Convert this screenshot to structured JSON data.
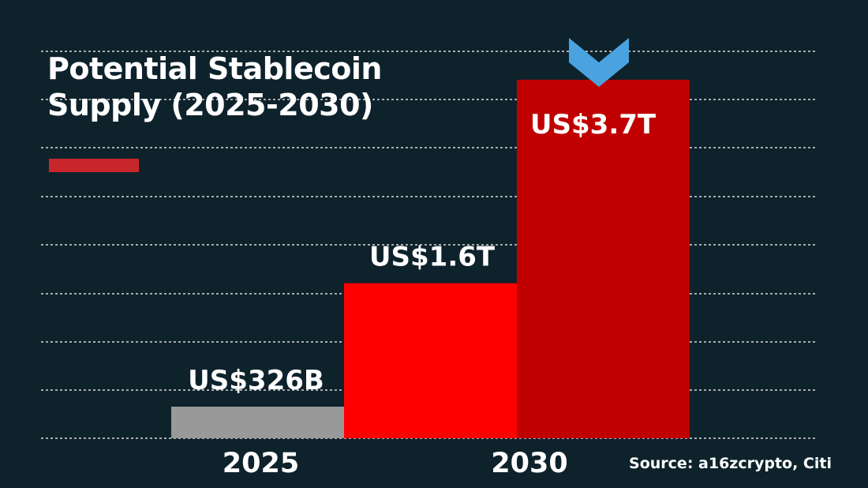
{
  "chart_data": {
    "type": "bar",
    "title_lines": [
      "Potential Stablecoin",
      "Supply (2025-2030)"
    ],
    "axis_labels": [
      "2025",
      "2030"
    ],
    "bars": [
      {
        "data_label": "US$326B",
        "value_billion_usd": 326,
        "color": "#999999"
      },
      {
        "data_label": "US$1.6T",
        "value_billion_usd": 1600,
        "color": "#ff0000"
      },
      {
        "data_label": "US$3.7T",
        "value_billion_usd": 3700,
        "color": "#c00000"
      }
    ],
    "ylim": [
      0,
      3700
    ],
    "grid": true,
    "source": "Source: a16zcrypto, Citi"
  },
  "colors": {
    "background": "#0e222c",
    "accent": "#c8262b",
    "chevron": "#4aa3df",
    "grid": "#d9d9d9"
  },
  "icons": {
    "marker": "chevron-down-icon"
  }
}
